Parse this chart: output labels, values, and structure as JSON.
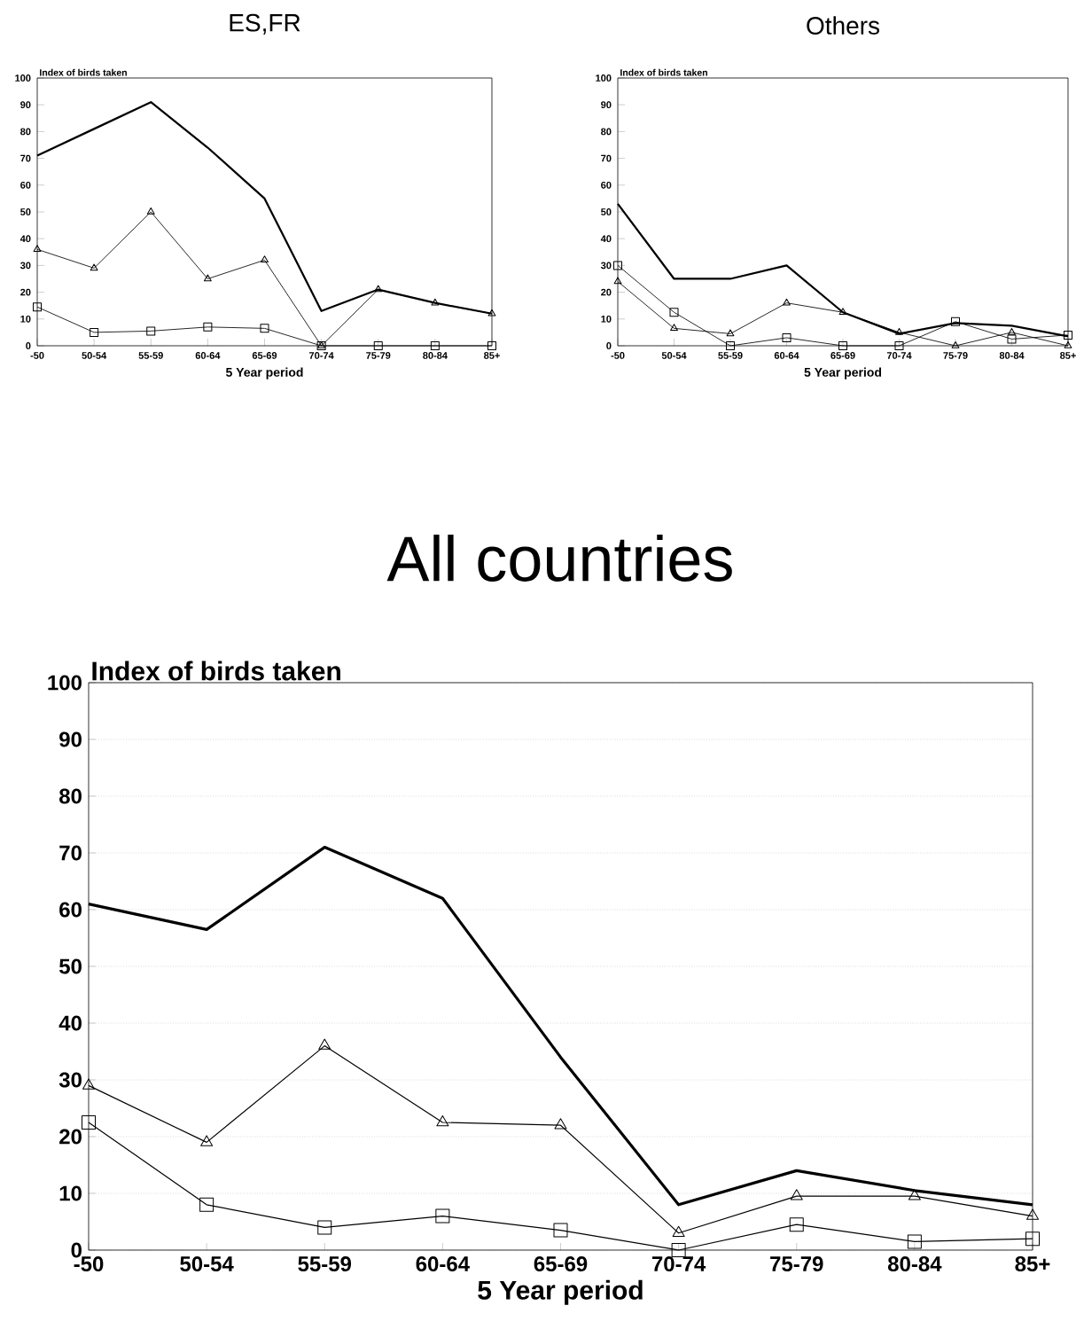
{
  "chart_data": [
    {
      "type": "line",
      "title": "ES,FR",
      "xlabel": "5 Year period",
      "ylabel": "Index of birds taken",
      "categories": [
        "-50",
        "50-54",
        "55-59",
        "60-64",
        "65-69",
        "70-74",
        "75-79",
        "80-84",
        "85+"
      ],
      "ylim": [
        0,
        100
      ],
      "yticks": [
        0,
        10,
        20,
        30,
        40,
        50,
        60,
        70,
        80,
        90,
        100
      ],
      "grid": false,
      "series": [
        {
          "color": "#000000",
          "marker": "none",
          "values": [
            71,
            81,
            91,
            74,
            55,
            13,
            21,
            16,
            12
          ]
        },
        {
          "color": "#000000",
          "marker": "triangle",
          "values": [
            36,
            29,
            50,
            25,
            32,
            0,
            21,
            16,
            12
          ]
        },
        {
          "color": "#000000",
          "marker": "square",
          "values": [
            14.5,
            5,
            5.5,
            7,
            6.5,
            0,
            0,
            0,
            0
          ]
        }
      ]
    },
    {
      "type": "line",
      "title": "Others",
      "xlabel": "5 Year period",
      "ylabel": "Index of birds taken",
      "categories": [
        "-50",
        "50-54",
        "55-59",
        "60-64",
        "65-69",
        "70-74",
        "75-79",
        "80-84",
        "85+"
      ],
      "ylim": [
        0,
        100
      ],
      "yticks": [
        0,
        10,
        20,
        30,
        40,
        50,
        60,
        70,
        80,
        90,
        100
      ],
      "grid": false,
      "series": [
        {
          "color": "#000000",
          "marker": "none",
          "values": [
            53,
            25,
            25,
            30,
            12.5,
            4.5,
            8.5,
            7.5,
            3.5
          ]
        },
        {
          "color": "#000000",
          "marker": "triangle",
          "values": [
            24,
            6.5,
            4.5,
            16,
            12.5,
            5,
            0,
            5,
            0
          ]
        },
        {
          "color": "#000000",
          "marker": "square",
          "values": [
            30,
            12.5,
            0,
            3,
            0,
            0,
            9,
            2.5,
            4
          ]
        }
      ]
    },
    {
      "type": "line",
      "title": "All countries",
      "xlabel": "5 Year period",
      "ylabel": "Index of birds taken",
      "categories": [
        "-50",
        "50-54",
        "55-59",
        "60-64",
        "65-69",
        "70-74",
        "75-79",
        "80-84",
        "85+"
      ],
      "ylim": [
        0,
        100
      ],
      "yticks": [
        0,
        10,
        20,
        30,
        40,
        50,
        60,
        70,
        80,
        90,
        100
      ],
      "grid": "y",
      "series": [
        {
          "color": "#000000",
          "marker": "none",
          "values": [
            61,
            56.5,
            71,
            62,
            34,
            8,
            14,
            10.5,
            8
          ]
        },
        {
          "color": "#000000",
          "marker": "triangle",
          "values": [
            29,
            19,
            36,
            22.5,
            22,
            3,
            9.5,
            9.5,
            6
          ]
        },
        {
          "color": "#000000",
          "marker": "square",
          "values": [
            22.5,
            8,
            4,
            6,
            3.5,
            0,
            4.5,
            1.5,
            2
          ]
        }
      ]
    }
  ]
}
